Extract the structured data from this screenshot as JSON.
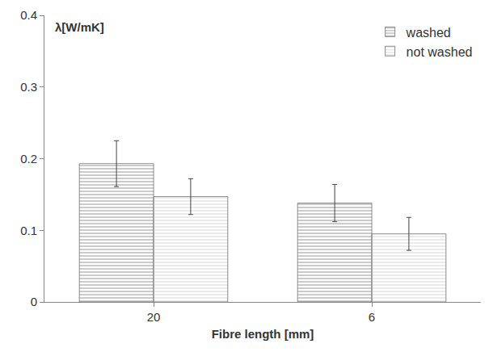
{
  "chart_data": {
    "type": "bar",
    "ylabel": "λ[W/mK]",
    "xlabel": "Fibre length [mm]",
    "categories": [
      "20",
      "6"
    ],
    "series": [
      {
        "name": "washed",
        "color": "#8c8c8c",
        "values": [
          0.193,
          0.138
        ],
        "errors": [
          0.032,
          0.026
        ]
      },
      {
        "name": "not washed",
        "color": "#cccccc",
        "values": [
          0.147,
          0.095
        ],
        "errors": [
          0.025,
          0.023
        ]
      }
    ],
    "ylim": [
      0,
      0.4
    ],
    "yticks": [
      0,
      0.1,
      0.2,
      0.3,
      0.4
    ],
    "grid": false,
    "legend": "top-right"
  }
}
